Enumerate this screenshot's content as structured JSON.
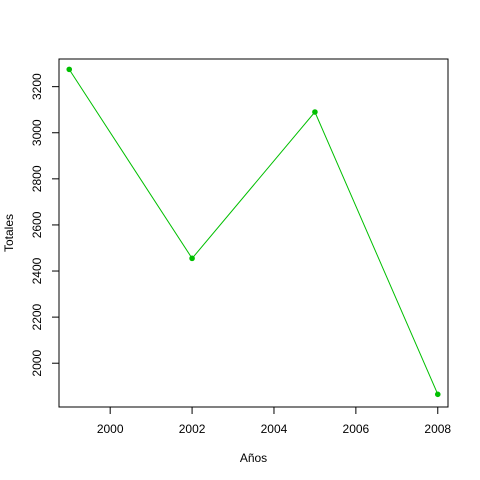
{
  "chart_data": {
    "type": "line",
    "xlabel": "Años",
    "ylabel": "Totales",
    "x": [
      1999,
      2002,
      2005,
      2008
    ],
    "series": [
      {
        "values": [
          3275,
          2455,
          3090,
          1865
        ]
      }
    ],
    "xlim": [
      1998.75,
      2008.25
    ],
    "ylim": [
      1810,
      3320
    ],
    "xticks": [
      2000,
      2002,
      2004,
      2006,
      2008
    ],
    "yticks": [
      2000,
      2200,
      2400,
      2600,
      2800,
      3000,
      3200
    ],
    "colors": {
      "line": "#00bf00",
      "points": "#00bf00"
    },
    "grid": false,
    "legend": "none"
  }
}
